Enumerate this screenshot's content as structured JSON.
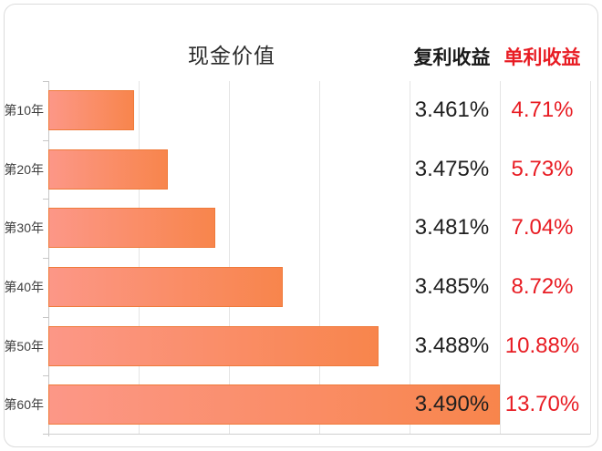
{
  "header": {
    "title": "现金价值",
    "compound_label": "复利收益",
    "simple_label": "单利收益"
  },
  "colors": {
    "bar_gradient_start": "#fc9787",
    "bar_gradient_end": "#f8854c",
    "bar_border": "#ef7a3a",
    "simple_red": "#e81c23",
    "gridline": "#e4e4e4"
  },
  "chart_data": {
    "type": "bar",
    "orientation": "horizontal",
    "title": "现金价值",
    "categories": [
      "第10年",
      "第20年",
      "第30年",
      "第40年",
      "第50年",
      "第60年"
    ],
    "series": [
      {
        "name": "现金价值",
        "unit": "axis grid units (bars unlabeled, lengths estimated from gridlines)",
        "values": [
          0.95,
          1.32,
          1.85,
          2.6,
          3.66,
          5.0
        ]
      },
      {
        "name": "复利收益",
        "values": [
          "3.461%",
          "3.475%",
          "3.481%",
          "3.485%",
          "3.488%",
          "3.490%"
        ]
      },
      {
        "name": "单利收益",
        "values": [
          "4.71%",
          "5.73%",
          "7.04%",
          "8.72%",
          "10.88%",
          "13.70%"
        ]
      }
    ],
    "xlim": [
      0,
      6
    ],
    "grid": "vertical gridlines every 1 unit",
    "legend": false
  }
}
